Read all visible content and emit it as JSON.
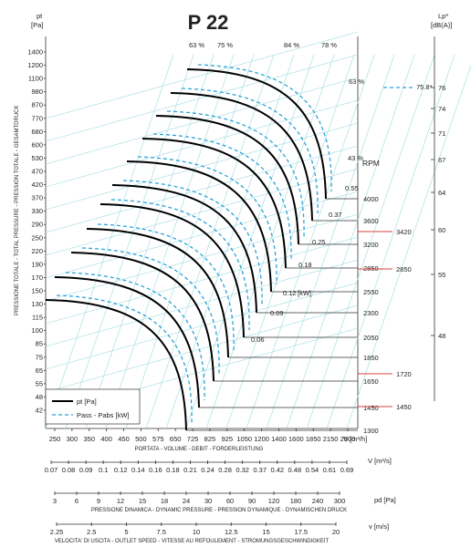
{
  "chart_data": {
    "type": "line",
    "title": "P 22",
    "ylabel_unit": [
      "pt",
      "[Pa]"
    ],
    "ylabel": "PRESSIONE TOTALE - TOTAL PRESSURE - PRESSION TOTALE - GESAMTDRUCK",
    "y_ticks": [
      "1400",
      "1200",
      "1100",
      "980",
      "870",
      "770",
      "680",
      "600",
      "530",
      "470",
      "420",
      "370",
      "330",
      "290",
      "250",
      "220",
      "190",
      "170",
      "150",
      "130",
      "115",
      "100",
      "85",
      "75",
      "65",
      "55",
      "48",
      "42"
    ],
    "x_axis_q": {
      "label": "PORTATA - VOLUME - DEBIT - FORDERLEISTUNG",
      "unit": "V [m³/h]",
      "ticks": [
        "250",
        "300",
        "350",
        "400",
        "450",
        "500",
        "575",
        "650",
        "725",
        "825",
        "925",
        "1050",
        "1200",
        "1400",
        "1600",
        "1850",
        "2150",
        "2500"
      ]
    },
    "x_axis_qs": {
      "unit": "V  [m³/s]",
      "ticks": [
        "0.07",
        "0.08",
        "0.09",
        "0.1",
        "0.12",
        "0.14",
        "0.16",
        "0.18",
        "0.21",
        "0.24",
        "0.28",
        "0.32",
        "0.37",
        "0.42",
        "0.48",
        "0.54",
        "0.61",
        "0.69"
      ]
    },
    "x_axis_pd": {
      "label": "PRESSIONE DINAMICA - DYNAMIC PRESSURE - PRESSION DYNAMIQUE - DYNAMISCHEN DRUCK",
      "unit": "pd  [Pa]",
      "ticks": [
        "3",
        "6",
        "9",
        "12",
        "15",
        "18",
        "24",
        "30",
        "60",
        "90",
        "120",
        "180",
        "240",
        "300"
      ]
    },
    "x_axis_v": {
      "label": "VELOCITA' DI USCITA - OUTLET SPEED - VITESSE AU REFOULEMENT - STROMUNGSGESCHWINDIGKEIT",
      "unit": "v  [m/s]",
      "ticks": [
        "2.25",
        "2.5",
        "5",
        "7.5",
        "10",
        "12.5",
        "15",
        "17.5",
        "20"
      ]
    },
    "rpm_title": "RPM",
    "rpm_values": [
      "4000",
      "3600",
      "3200",
      "2850",
      "2550",
      "2300",
      "2050",
      "1850",
      "1650",
      "1450",
      "1300"
    ],
    "power_unit": "[kW]",
    "power_values": [
      "0.55",
      "0.37",
      "0.25",
      "0.18",
      "0.12",
      "0.09",
      "0.06"
    ],
    "efficiency_labels": [
      "63 %",
      "75 %",
      "84 %",
      "78 %",
      "63 %",
      "43 %"
    ],
    "sound_unit": [
      "Lp*",
      "[dB(A)]"
    ],
    "sound_ticks": [
      "76",
      "74",
      "71",
      "67",
      "64",
      "60",
      "55",
      "48"
    ],
    "sound_marker": "75.8*",
    "sound_rpm_markers": [
      "3420",
      "2850",
      "1720",
      "1450"
    ],
    "legend": [
      "pt [Pa]",
      "Pass - Pabs [kW]"
    ]
  }
}
